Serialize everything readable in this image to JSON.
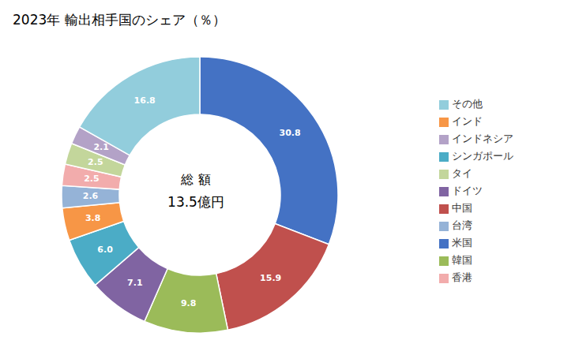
{
  "chart_data": {
    "type": "pie",
    "title": "2023年 輸出相手国のシェア（％）",
    "annotations": [
      "総 額",
      "13.5億円"
    ],
    "categories": [
      "米国",
      "中国",
      "韓国",
      "ドイツ",
      "シンガポール",
      "インド",
      "台湾",
      "香港",
      "タイ",
      "インドネシア",
      "その他"
    ],
    "values": [
      30.8,
      15.9,
      9.8,
      7.1,
      6.0,
      3.8,
      2.6,
      2.5,
      2.5,
      2.1,
      16.8
    ],
    "value_labels": [
      "30.8",
      "15.9",
      "9.8",
      "7.1",
      "6.0",
      "3.8",
      "2.6",
      "2.5",
      "2.5",
      "2.1",
      "16.8"
    ],
    "colors": [
      "#4472C4",
      "#C0504D",
      "#9BBB59",
      "#8064A2",
      "#4BACC6",
      "#F79646",
      "#95B3D7",
      "#F2ACAC",
      "#C3D69B",
      "#B3A2C7",
      "#92CDDC"
    ],
    "data_labels": true,
    "legend": "right"
  }
}
